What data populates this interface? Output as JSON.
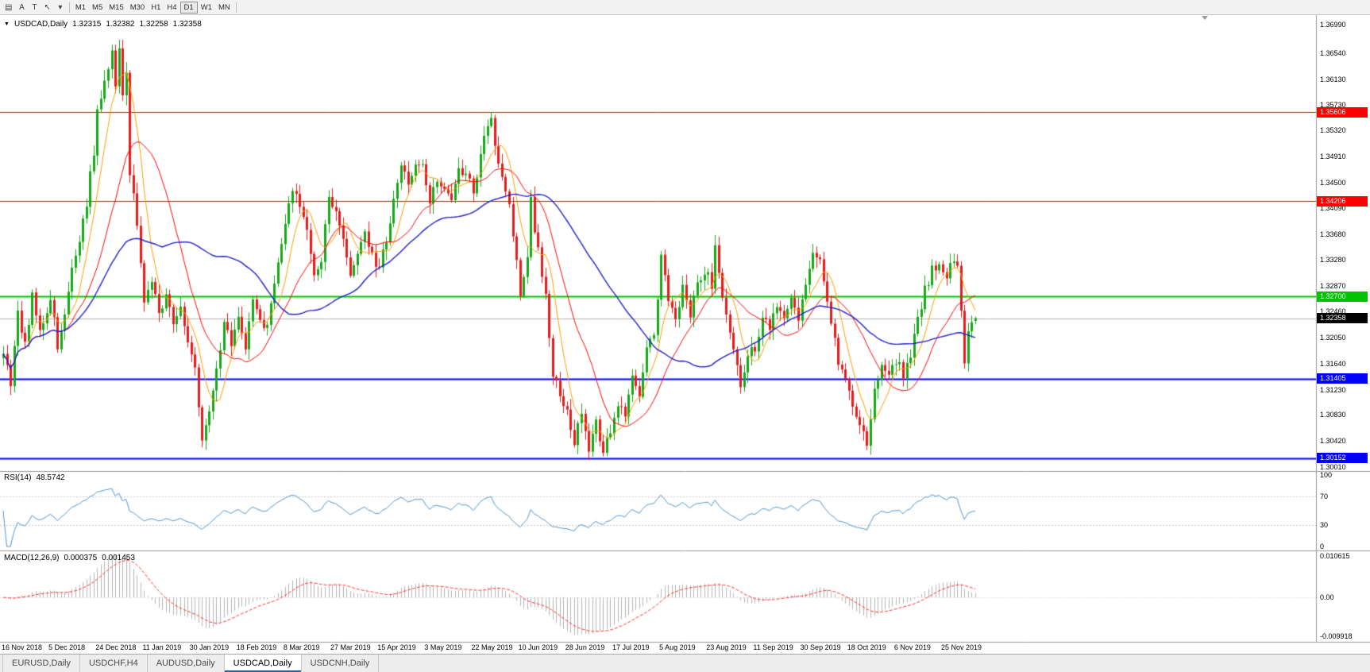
{
  "toolbar": {
    "tools": [
      {
        "name": "chart-list-icon",
        "glyph": "▤"
      },
      {
        "name": "font-a-tool-icon",
        "glyph": "A"
      },
      {
        "name": "text-tool-icon",
        "glyph": "T"
      },
      {
        "name": "cursor-tool-icon",
        "glyph": "↖"
      },
      {
        "name": "dropdown-arrow-icon",
        "glyph": "▾"
      }
    ],
    "timeframes": [
      "M1",
      "M5",
      "M15",
      "M30",
      "H1",
      "H4",
      "D1",
      "W1",
      "MN"
    ],
    "active_timeframe": "D1"
  },
  "chart_title": {
    "arrow_glyph": "▼",
    "symbol": "USDCAD,Daily",
    "open": "1.32315",
    "high": "1.32382",
    "low": "1.32258",
    "close": "1.32358"
  },
  "rsi_panel": {
    "title": "RSI(14)",
    "value": "48.5742",
    "axis_labels": [
      "100",
      "70",
      "30",
      "0"
    ]
  },
  "macd_panel": {
    "title": "MACD(12,26,9)",
    "main_value": "0.000375",
    "signal_value": "0.001453",
    "axis_labels": [
      "0.010615",
      "0.00",
      "-0.009918"
    ]
  },
  "price_axis_labels": [
    "1.36990",
    "1.36540",
    "1.36130",
    "1.35730",
    "1.35320",
    "1.34910",
    "1.34500",
    "1.34090",
    "1.33680",
    "1.33280",
    "1.32870",
    "1.32460",
    "1.32050",
    "1.31640",
    "1.31230",
    "1.30830",
    "1.30420",
    "1.30010"
  ],
  "date_axis_labels": [
    "16 Nov 2018",
    "5 Dec 2018",
    "24 Dec 2018",
    "11 Jan 2019",
    "30 Jan 2019",
    "18 Feb 2019",
    "8 Mar 2019",
    "27 Mar 2019",
    "15 Apr 2019",
    "3 May 2019",
    "22 May 2019",
    "10 Jun 2019",
    "28 Jun 2019",
    "17 Jul 2019",
    "5 Aug 2019",
    "23 Aug 2019",
    "11 Sep 2019",
    "30 Sep 2019",
    "18 Oct 2019",
    "6 Nov 2019",
    "25 Nov 2019"
  ],
  "tabs": [
    {
      "label": "EURUSD,Daily",
      "active": false
    },
    {
      "label": "USDCHF,H4",
      "active": false
    },
    {
      "label": "AUDUSD,Daily",
      "active": false
    },
    {
      "label": "USDCAD,Daily",
      "active": true
    },
    {
      "label": "USDCNH,Daily",
      "active": false
    }
  ],
  "chart_data": {
    "type": "candlestick",
    "symbol": "USDCAD",
    "timeframe": "Daily",
    "bar_count": 270,
    "bars_per_date_label": 13,
    "visible_price_range": {
      "top": 1.3714,
      "bottom": 1.29946
    },
    "last_ohlc": {
      "open": 1.32315,
      "high": 1.32382,
      "low": 1.32258,
      "close": 1.32358
    },
    "current_price": {
      "price": 1.32358,
      "label": "1.32358",
      "line_color": "#b4b4b4",
      "badge_color": "#000000"
    },
    "horizontal_levels": [
      {
        "price": 1.35606,
        "label": "1.35606",
        "color": "#ff0000",
        "line_width": 1
      },
      {
        "price": 1.34206,
        "label": "1.34206",
        "color": "#ff0000",
        "line_width": 1
      },
      {
        "price": 1.327,
        "label": "1.32700",
        "color": "#00c400",
        "line_width": 2
      },
      {
        "price": 1.31405,
        "label": "1.31405",
        "color": "#0000ff",
        "line_width": 2
      },
      {
        "price": 1.30152,
        "label": "1.30152",
        "color": "#0000ff",
        "line_width": 2
      }
    ],
    "style": {
      "up_color": "#17a817",
      "down_color": "#e81b1b",
      "ma_fast_color": "#ff9c00",
      "ma_mid_color": "#ff0000",
      "ma_slow_color": "#2020cc",
      "rsi_color": "#4f94cd",
      "macd_hist_color": "#b4b4b4",
      "macd_signal_color": "#ff3030",
      "background": "#ffffff"
    },
    "moving_average_periods": {
      "fast": 7,
      "mid": 18,
      "slow": 45
    },
    "rsi": {
      "period": 14,
      "range": [
        0,
        100
      ],
      "guide_levels": [
        70,
        30
      ]
    },
    "macd": {
      "fast": 12,
      "slow": 26,
      "signal": 9,
      "axis_max": 0.010615,
      "axis_min": -0.009918
    },
    "close_anchors": [
      [
        0,
        1.3185
      ],
      [
        2,
        1.313
      ],
      [
        4,
        1.3245
      ],
      [
        6,
        1.3195
      ],
      [
        8,
        1.327
      ],
      [
        10,
        1.3215
      ],
      [
        13,
        1.327
      ],
      [
        15,
        1.3195
      ],
      [
        17,
        1.324
      ],
      [
        19,
        1.331
      ],
      [
        21,
        1.335
      ],
      [
        23,
        1.342
      ],
      [
        25,
        1.35
      ],
      [
        26,
        1.356
      ],
      [
        28,
        1.361
      ],
      [
        30,
        1.365
      ],
      [
        31,
        1.36
      ],
      [
        32,
        1.3655
      ],
      [
        33,
        1.359
      ],
      [
        34,
        1.362
      ],
      [
        35,
        1.347
      ],
      [
        37,
        1.339
      ],
      [
        39,
        1.326
      ],
      [
        41,
        1.329
      ],
      [
        43,
        1.325
      ],
      [
        45,
        1.327
      ],
      [
        47,
        1.323
      ],
      [
        49,
        1.326
      ],
      [
        51,
        1.32
      ],
      [
        53,
        1.3155
      ],
      [
        55,
        1.3045
      ],
      [
        57,
        1.308
      ],
      [
        59,
        1.315
      ],
      [
        61,
        1.3235
      ],
      [
        63,
        1.32
      ],
      [
        65,
        1.324
      ],
      [
        67,
        1.3185
      ],
      [
        69,
        1.3265
      ],
      [
        71,
        1.323
      ],
      [
        73,
        1.322
      ],
      [
        75,
        1.329
      ],
      [
        77,
        1.3345
      ],
      [
        79,
        1.342
      ],
      [
        80,
        1.3445
      ],
      [
        82,
        1.3415
      ],
      [
        84,
        1.337
      ],
      [
        86,
        1.33
      ],
      [
        88,
        1.332
      ],
      [
        90,
        1.3435
      ],
      [
        92,
        1.34
      ],
      [
        94,
        1.336
      ],
      [
        96,
        1.331
      ],
      [
        98,
        1.334
      ],
      [
        100,
        1.3365
      ],
      [
        102,
        1.333
      ],
      [
        104,
        1.332
      ],
      [
        106,
        1.336
      ],
      [
        108,
        1.342
      ],
      [
        110,
        1.348
      ],
      [
        112,
        1.345
      ],
      [
        114,
        1.347
      ],
      [
        116,
        1.348
      ],
      [
        118,
        1.3425
      ],
      [
        120,
        1.3455
      ],
      [
        122,
        1.344
      ],
      [
        124,
        1.343
      ],
      [
        126,
        1.347
      ],
      [
        128,
        1.346
      ],
      [
        130,
        1.3435
      ],
      [
        132,
        1.349
      ],
      [
        134,
        1.3545
      ],
      [
        135,
        1.356
      ],
      [
        136,
        1.351
      ],
      [
        138,
        1.3465
      ],
      [
        140,
        1.341
      ],
      [
        142,
        1.333
      ],
      [
        143,
        1.327
      ],
      [
        145,
        1.333
      ],
      [
        146,
        1.342
      ],
      [
        148,
        1.334
      ],
      [
        150,
        1.327
      ],
      [
        152,
        1.315
      ],
      [
        154,
        1.311
      ],
      [
        156,
        1.3095
      ],
      [
        158,
        1.304
      ],
      [
        160,
        1.3085
      ],
      [
        162,
        1.303
      ],
      [
        164,
        1.3075
      ],
      [
        166,
        1.3022
      ],
      [
        168,
        1.306
      ],
      [
        170,
        1.3105
      ],
      [
        172,
        1.308
      ],
      [
        174,
        1.3145
      ],
      [
        176,
        1.3115
      ],
      [
        178,
        1.3185
      ],
      [
        180,
        1.321
      ],
      [
        182,
        1.333
      ],
      [
        184,
        1.327
      ],
      [
        186,
        1.323
      ],
      [
        188,
        1.328
      ],
      [
        190,
        1.324
      ],
      [
        192,
        1.329
      ],
      [
        194,
        1.331
      ],
      [
        196,
        1.329
      ],
      [
        197,
        1.335
      ],
      [
        199,
        1.327
      ],
      [
        201,
        1.321
      ],
      [
        204,
        1.3135
      ],
      [
        206,
        1.3175
      ],
      [
        208,
        1.319
      ],
      [
        210,
        1.324
      ],
      [
        212,
        1.322
      ],
      [
        214,
        1.326
      ],
      [
        216,
        1.3235
      ],
      [
        218,
        1.3265
      ],
      [
        220,
        1.324
      ],
      [
        222,
        1.328
      ],
      [
        224,
        1.333
      ],
      [
        225,
        1.334
      ],
      [
        227,
        1.33
      ],
      [
        229,
        1.323
      ],
      [
        231,
        1.317
      ],
      [
        233,
        1.314
      ],
      [
        235,
        1.31
      ],
      [
        237,
        1.306
      ],
      [
        239,
        1.3038
      ],
      [
        241,
        1.312
      ],
      [
        243,
        1.316
      ],
      [
        245,
        1.314
      ],
      [
        247,
        1.317
      ],
      [
        249,
        1.3145
      ],
      [
        251,
        1.318
      ],
      [
        253,
        1.323
      ],
      [
        255,
        1.328
      ],
      [
        257,
        1.331
      ],
      [
        259,
        1.3325
      ],
      [
        261,
        1.3305
      ],
      [
        263,
        1.333
      ],
      [
        264,
        1.331
      ],
      [
        265,
        1.325
      ],
      [
        266,
        1.316
      ],
      [
        267,
        1.321
      ],
      [
        268,
        1.3225
      ],
      [
        269,
        1.32358
      ]
    ]
  }
}
